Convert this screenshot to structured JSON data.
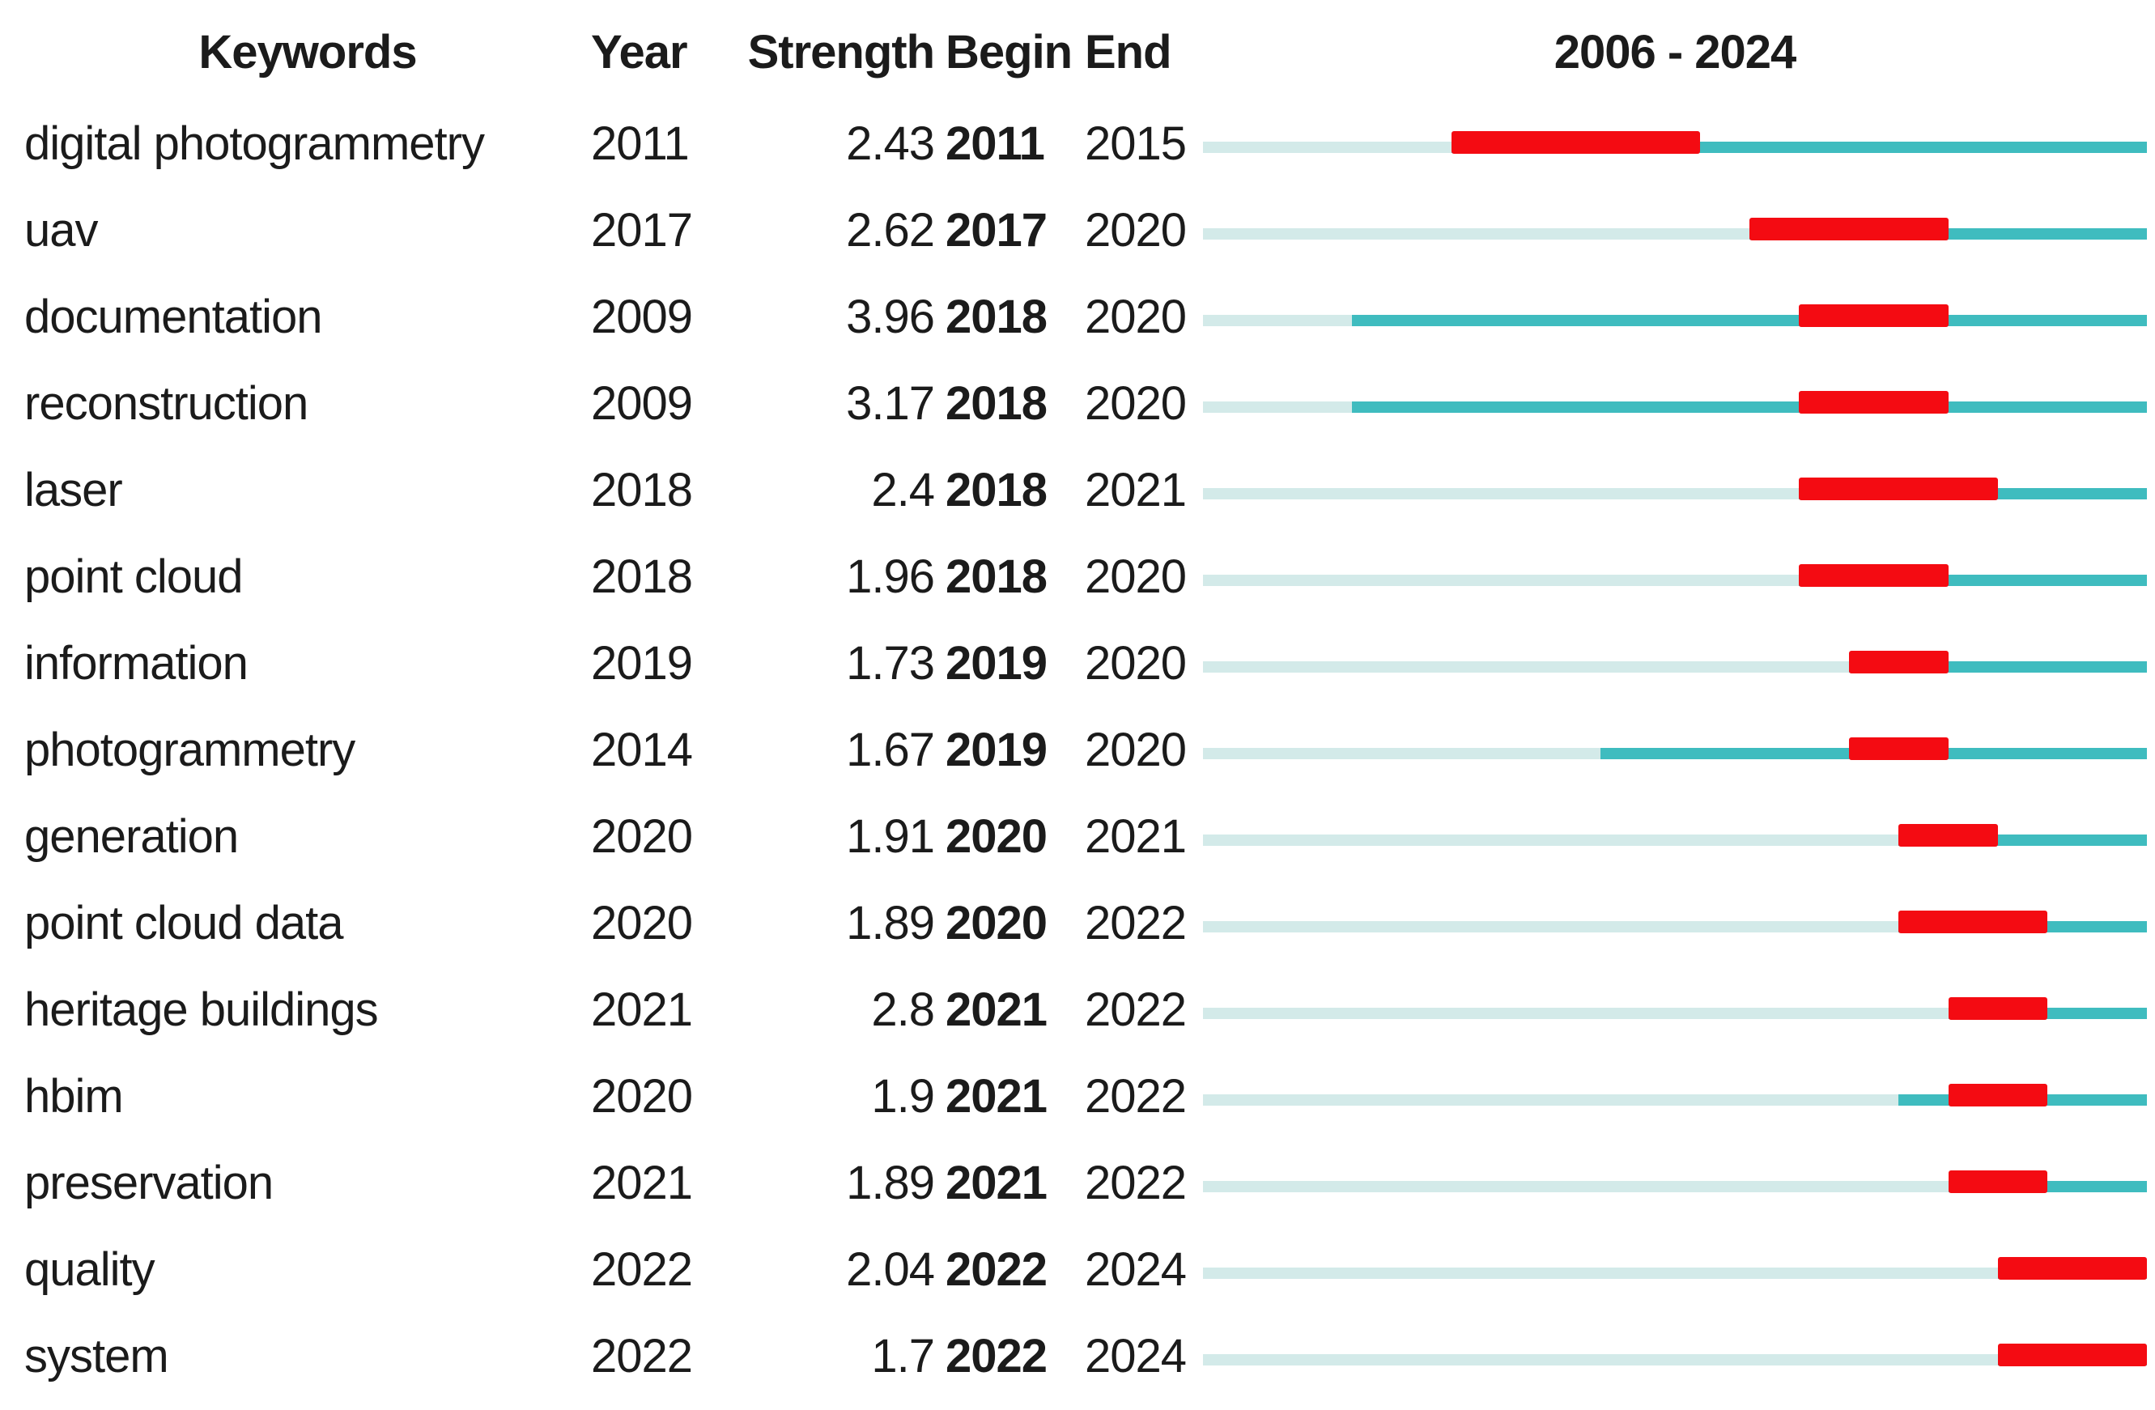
{
  "header": {
    "keywords": "Keywords",
    "year": "Year",
    "strength": "Strength",
    "begin": "Begin",
    "end": "End",
    "timeline": "2006 - 2024"
  },
  "colors": {
    "burst_red": "#f40b12",
    "active_teal": "#3fbcbf",
    "inactive_teal": "#d3eae9",
    "text": "#1b1b1b"
  },
  "chart_data": {
    "type": "table",
    "description": "Keyword citation burst table: each row has a 2006-2024 timeline bar; pale teal = years before keyword first appears, dark teal = keyword active years, thick red = burst period from Begin to End (inclusive year cells).",
    "columns": [
      "Keywords",
      "Year",
      "Strength",
      "Begin",
      "End",
      "2006 - 2024"
    ],
    "timeline": {
      "start": 2006,
      "end": 2024
    },
    "rows": [
      {
        "keyword": "digital photogrammetry",
        "year": 2011,
        "strength": "2.43",
        "begin": 2011,
        "end": 2015
      },
      {
        "keyword": "uav",
        "year": 2017,
        "strength": "2.62",
        "begin": 2017,
        "end": 2020
      },
      {
        "keyword": "documentation",
        "year": 2009,
        "strength": "3.96",
        "begin": 2018,
        "end": 2020
      },
      {
        "keyword": "reconstruction",
        "year": 2009,
        "strength": "3.17",
        "begin": 2018,
        "end": 2020
      },
      {
        "keyword": "laser",
        "year": 2018,
        "strength": "2.4",
        "begin": 2018,
        "end": 2021
      },
      {
        "keyword": "point cloud",
        "year": 2018,
        "strength": "1.96",
        "begin": 2018,
        "end": 2020
      },
      {
        "keyword": "information",
        "year": 2019,
        "strength": "1.73",
        "begin": 2019,
        "end": 2020
      },
      {
        "keyword": "photogrammetry",
        "year": 2014,
        "strength": "1.67",
        "begin": 2019,
        "end": 2020
      },
      {
        "keyword": "generation",
        "year": 2020,
        "strength": "1.91",
        "begin": 2020,
        "end": 2021
      },
      {
        "keyword": "point cloud data",
        "year": 2020,
        "strength": "1.89",
        "begin": 2020,
        "end": 2022
      },
      {
        "keyword": "heritage buildings",
        "year": 2021,
        "strength": "2.8",
        "begin": 2021,
        "end": 2022
      },
      {
        "keyword": "hbim",
        "year": 2020,
        "strength": "1.9",
        "begin": 2021,
        "end": 2022
      },
      {
        "keyword": "preservation",
        "year": 2021,
        "strength": "1.89",
        "begin": 2021,
        "end": 2022
      },
      {
        "keyword": "quality",
        "year": 2022,
        "strength": "2.04",
        "begin": 2022,
        "end": 2024
      },
      {
        "keyword": "system",
        "year": 2022,
        "strength": "1.7",
        "begin": 2022,
        "end": 2024
      }
    ]
  }
}
